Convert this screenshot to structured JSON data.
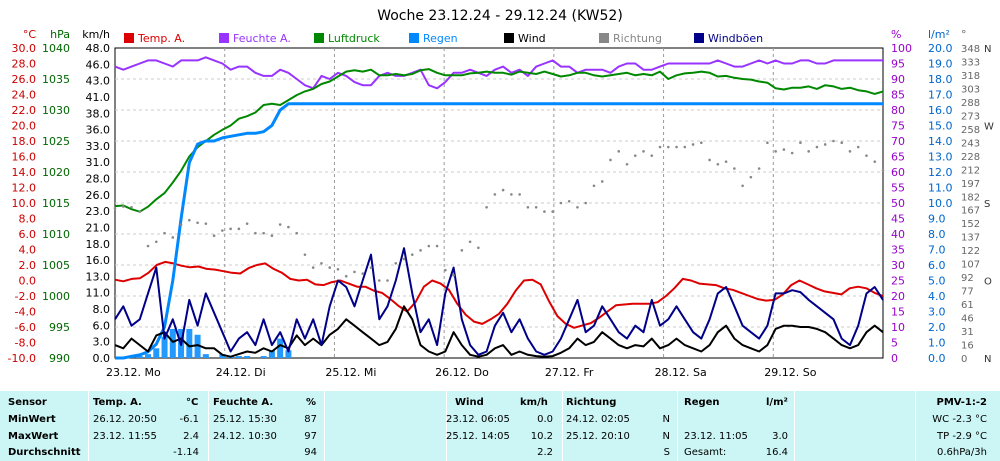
{
  "chart_data": {
    "type": "line",
    "title": "Woche 23.12.24 - 29.12.24 (KW52)",
    "days": [
      "23.12. Mo",
      "24.12. Di",
      "25.12. Mi",
      "26.12. Do",
      "27.12. Fr",
      "28.12. Sa",
      "29.12. So"
    ],
    "left_axes": [
      {
        "unit": "°C",
        "color": "#cc0000",
        "ticks": [
          "30.0",
          "28.0",
          "26.0",
          "24.0",
          "22.0",
          "20.0",
          "18.0",
          "16.0",
          "14.0",
          "12.0",
          "10.0",
          "8.0",
          "6.0",
          "4.0",
          "2.0",
          "0.0",
          "-2.0",
          "-4.0",
          "-6.0",
          "-8.0",
          "-10.0"
        ]
      },
      {
        "unit": "hPa",
        "color": "#006600",
        "ticks": [
          "1040",
          "1035",
          "1030",
          "1025",
          "1020",
          "1015",
          "1010",
          "1005",
          "1000",
          "995",
          "990"
        ]
      },
      {
        "unit": "km/h",
        "color": "#000000",
        "ticks": [
          "48.0",
          "46.0",
          "43.0",
          "41.0",
          "38.0",
          "36.0",
          "33.0",
          "31.0",
          "28.0",
          "26.0",
          "23.0",
          "21.0",
          "18.0",
          "16.0",
          "13.0",
          "11.0",
          "8.0",
          "6.0",
          "3.0",
          "0.0"
        ]
      }
    ],
    "right_axes": [
      {
        "unit": "%",
        "color": "#9900cc",
        "ticks": [
          "100",
          "95",
          "90",
          "85",
          "80",
          "75",
          "70",
          "65",
          "60",
          "55",
          "50",
          "45",
          "40",
          "35",
          "30",
          "25",
          "20",
          "15",
          "10",
          "5",
          "0"
        ]
      },
      {
        "unit": "l/m²",
        "color": "#0066cc",
        "ticks": [
          "20.0",
          "19.0",
          "18.0",
          "17.0",
          "16.0",
          "15.0",
          "14.0",
          "13.0",
          "12.0",
          "11.0",
          "10.0",
          "9.0",
          "8.0",
          "7.0",
          "6.0",
          "5.0",
          "4.0",
          "3.0",
          "2.0",
          "1.0",
          "0.0"
        ]
      },
      {
        "unit": "°",
        "color": "#666666",
        "ticks": [
          "348",
          "333",
          "318",
          "303",
          "288",
          "273",
          "258",
          "243",
          "228",
          "212",
          "197",
          "182",
          "167",
          "152",
          "137",
          "122",
          "107",
          "92",
          "77",
          "61",
          "46",
          "31",
          "16",
          "0"
        ]
      }
    ],
    "compass": [
      "N",
      "O",
      "S",
      "W",
      "N"
    ],
    "legend": [
      {
        "label": "Temp. A.",
        "color": "#dd0000"
      },
      {
        "label": "Feuchte A.",
        "color": "#9933ff"
      },
      {
        "label": "Luftdruck",
        "color": "#008800"
      },
      {
        "label": "Regen",
        "color": "#0088ff"
      },
      {
        "label": "Wind",
        "color": "#000000"
      },
      {
        "label": "Richtung",
        "color": "#888888"
      },
      {
        "label": "Windböen",
        "color": "#000088"
      }
    ],
    "series": [
      {
        "name": "Temp. A.",
        "unit": "°C",
        "ylim": [
          -10,
          30
        ],
        "color": "#dd0000",
        "values": [
          0.1,
          -0.1,
          0.2,
          0.3,
          1.0,
          2.0,
          2.4,
          2.2,
          1.9,
          1.7,
          1.8,
          1.5,
          1.4,
          1.2,
          1.0,
          0.9,
          1.6,
          2.0,
          2.2,
          1.5,
          1.0,
          0.2,
          0.0,
          0.1,
          -0.5,
          -0.6,
          -0.2,
          0.0,
          -0.4,
          -0.8,
          -0.8,
          -1.3,
          -1.6,
          -2.4,
          -3.3,
          -4.0,
          -2.8,
          -0.8,
          0.0,
          -0.4,
          -1.2,
          -3.0,
          -4.4,
          -5.3,
          -5.6,
          -5.0,
          -4.3,
          -3.0,
          -1.3,
          0.0,
          0.1,
          -0.5,
          -2.7,
          -4.6,
          -5.6,
          -6.1,
          -5.8,
          -5.5,
          -4.8,
          -4.0,
          -3.2,
          -3.1,
          -3.0,
          -3.0,
          -3.0,
          -2.8,
          -2.0,
          -1.0,
          0.2,
          0.0,
          -0.4,
          -0.5,
          -0.6,
          -1.0,
          -1.2,
          -1.6,
          -2.0,
          -2.4,
          -2.6,
          -2.5,
          -1.8,
          -0.6,
          0.0,
          -0.5,
          -1.0,
          -1.4,
          -1.6,
          -1.8,
          -1.0,
          -0.8,
          -1.0,
          -1.6,
          -2.0
        ]
      },
      {
        "name": "Feuchte A.",
        "unit": "%",
        "ylim": [
          0,
          100
        ],
        "color": "#9933ff",
        "values": [
          94,
          93,
          94,
          95,
          96,
          96,
          95,
          94,
          96,
          96,
          96,
          97,
          96,
          95,
          93,
          94,
          94,
          92,
          91,
          91,
          93,
          92,
          90,
          88,
          87,
          91,
          90,
          92,
          91,
          89,
          88,
          88,
          91,
          92,
          91,
          91,
          92,
          93,
          88,
          87,
          89,
          92,
          92,
          93,
          92,
          91,
          93,
          94,
          92,
          93,
          91,
          94,
          95,
          96,
          94,
          94,
          92,
          93,
          93,
          93,
          92,
          94,
          95,
          95,
          93,
          93,
          94,
          95,
          95,
          95,
          95,
          95,
          95,
          96,
          95,
          94,
          94,
          95,
          96,
          95,
          96,
          95,
          95,
          96,
          96,
          95,
          95,
          96,
          96,
          96,
          96,
          96,
          96,
          96
        ]
      },
      {
        "name": "Luftdruck",
        "unit": "hPa",
        "ylim": [
          990,
          1040
        ],
        "color": "#008800",
        "values": [
          1014.5,
          1014.6,
          1014.0,
          1013.6,
          1014.4,
          1015.6,
          1016.6,
          1018.3,
          1020.2,
          1022.5,
          1024.0,
          1025.0,
          1026.0,
          1026.8,
          1027.5,
          1028.6,
          1029.0,
          1029.6,
          1030.8,
          1031.0,
          1030.8,
          1031.6,
          1032.4,
          1033.0,
          1033.4,
          1034.2,
          1034.6,
          1035.4,
          1036.2,
          1036.4,
          1036.2,
          1036.5,
          1035.6,
          1035.6,
          1035.8,
          1035.6,
          1035.8,
          1036.4,
          1036.6,
          1036.0,
          1035.6,
          1035.6,
          1035.6,
          1035.9,
          1036.0,
          1036.2,
          1036.0,
          1036.0,
          1035.7,
          1036.2,
          1036.0,
          1035.8,
          1036.2,
          1035.8,
          1035.4,
          1035.6,
          1036.0,
          1036.0,
          1035.6,
          1035.4,
          1035.6,
          1035.8,
          1036.0,
          1035.6,
          1035.8,
          1035.6,
          1036.2,
          1035.0,
          1035.6,
          1035.9,
          1036.0,
          1036.2,
          1036.0,
          1035.4,
          1035.5,
          1035.2,
          1035.0,
          1034.9,
          1034.6,
          1034.4,
          1033.5,
          1033.3,
          1033.6,
          1033.6,
          1033.8,
          1033.4,
          1034.0,
          1033.8,
          1033.4,
          1033.6,
          1033.2,
          1033.0,
          1032.6,
          1033.0
        ]
      },
      {
        "name": "Regen",
        "unit": "l/m²",
        "ylim": [
          0,
          20
        ],
        "color": "#0088ff",
        "values": [
          0.0,
          0.0,
          0.1,
          0.2,
          0.4,
          0.9,
          2.0,
          5.0,
          9.0,
          12.6,
          13.8,
          14.0,
          14.0,
          14.2,
          14.3,
          14.4,
          14.5,
          14.5,
          14.6,
          15.0,
          16.0,
          16.4,
          16.4,
          16.4,
          16.4,
          16.4,
          16.4,
          16.4,
          16.4,
          16.4,
          16.4,
          16.4,
          16.4,
          16.4,
          16.4,
          16.4,
          16.4,
          16.4,
          16.4,
          16.4,
          16.4,
          16.4,
          16.4,
          16.4,
          16.4,
          16.4,
          16.4,
          16.4,
          16.4,
          16.4,
          16.4,
          16.4,
          16.4,
          16.4,
          16.4,
          16.4,
          16.4,
          16.4,
          16.4,
          16.4,
          16.4,
          16.4,
          16.4,
          16.4,
          16.4,
          16.4,
          16.4,
          16.4,
          16.4,
          16.4,
          16.4,
          16.4,
          16.4,
          16.4,
          16.4,
          16.4,
          16.4,
          16.4,
          16.4,
          16.4,
          16.4,
          16.4,
          16.4,
          16.4,
          16.4,
          16.4,
          16.4,
          16.4,
          16.4,
          16.4,
          16.4,
          16.4,
          16.4,
          16.4
        ]
      },
      {
        "name": "Wind",
        "unit": "km/h",
        "ylim": [
          0,
          48
        ],
        "color": "#000000",
        "values": [
          2.0,
          1.5,
          3.0,
          2.0,
          1.0,
          3.5,
          4.0,
          2.5,
          3.0,
          1.8,
          2.0,
          1.5,
          1.5,
          0.5,
          0.2,
          0.6,
          1.0,
          0.8,
          1.5,
          1.0,
          2.0,
          1.5,
          3.5,
          2.0,
          3.0,
          2.0,
          3.6,
          4.5,
          6.0,
          5.0,
          4.0,
          3.0,
          2.0,
          2.5,
          4.5,
          8.0,
          6.0,
          2.0,
          1.0,
          0.5,
          1.0,
          4.0,
          2.0,
          0.5,
          0.2,
          0.5,
          1.5,
          2.0,
          0.5,
          1.0,
          0.5,
          0.3,
          0.2,
          0.3,
          0.8,
          1.5,
          3.0,
          2.0,
          2.5,
          4.0,
          3.0,
          2.0,
          1.5,
          2.0,
          1.8,
          3.0,
          1.5,
          2.0,
          3.0,
          2.0,
          1.5,
          1.0,
          2.0,
          4.0,
          5.0,
          3.0,
          2.0,
          1.5,
          1.0,
          2.0,
          4.5,
          5.0,
          5.0,
          4.8,
          4.8,
          4.5,
          4.0,
          3.0,
          2.0,
          1.5,
          2.0,
          4.0,
          5.0,
          4.0
        ]
      },
      {
        "name": "Windböen",
        "unit": "km/h",
        "ylim": [
          0,
          48
        ],
        "color": "#000088",
        "values": [
          6.0,
          8.0,
          5.0,
          6.0,
          10.0,
          14.0,
          3.0,
          6.0,
          2.0,
          9.0,
          5.0,
          10.0,
          7.0,
          4.0,
          1.0,
          3.0,
          4.0,
          2.0,
          6.0,
          2.0,
          4.0,
          1.0,
          6.0,
          3.0,
          6.0,
          2.0,
          8.0,
          12.0,
          11.0,
          8.0,
          12.0,
          16.0,
          6.0,
          8.0,
          12.0,
          17.0,
          10.0,
          4.0,
          6.0,
          2.0,
          10.0,
          14.0,
          6.0,
          2.0,
          0.5,
          1.0,
          5.0,
          7.0,
          4.0,
          6.0,
          3.0,
          1.0,
          0.5,
          1.0,
          3.0,
          6.0,
          9.0,
          4.0,
          5.0,
          8.0,
          6.0,
          4.0,
          3.0,
          5.0,
          4.0,
          9.0,
          5.0,
          6.0,
          8.0,
          6.0,
          4.0,
          3.0,
          6.0,
          10.0,
          11.0,
          8.0,
          5.0,
          4.0,
          3.0,
          5.0,
          10.0,
          10.0,
          10.5,
          10.2,
          9.0,
          8.0,
          7.0,
          6.0,
          3.0,
          2.0,
          5.0,
          10.0,
          11.0,
          9.0
        ]
      },
      {
        "name": "Richtung",
        "unit": "°",
        "ylim": [
          0,
          360
        ],
        "color": "#888888",
        "values": [
          174,
          176,
          175,
          170,
          130,
          135,
          145,
          140,
          155,
          160,
          157,
          156,
          142,
          148,
          150,
          150,
          156,
          145,
          145,
          142,
          155,
          152,
          145,
          120,
          105,
          110,
          105,
          103,
          95,
          100,
          98,
          105,
          90,
          90,
          110,
          115,
          120,
          125,
          130,
          130,
          102,
          96,
          125,
          135,
          128,
          175,
          190,
          195,
          190,
          190,
          175,
          175,
          170,
          170,
          180,
          182,
          175,
          180,
          200,
          205,
          230,
          240,
          225,
          235,
          240,
          235,
          245,
          245,
          245,
          245,
          248,
          250,
          230,
          225,
          228,
          220,
          200,
          210,
          220,
          250,
          240,
          242,
          238,
          250,
          240,
          245,
          248,
          252,
          250,
          240,
          245,
          235,
          228,
          218
        ]
      }
    ],
    "stats": {
      "row_labels": [
        "Sensor",
        "MinWert",
        "MaxWert",
        "Durchschnitt"
      ],
      "temp": {
        "title": "Temp. A.",
        "unit": "°C",
        "min_time": "26.12.  20:50",
        "min": "-6.1",
        "max_time": "23.12.  11:55",
        "max": "2.4",
        "avg": "-1.14"
      },
      "hum": {
        "title": "Feuchte A.",
        "unit": "%",
        "min_time": "25.12.  15:30",
        "min": "87",
        "max_time": "24.12.  10:30",
        "max": "97",
        "avg": "94"
      },
      "wind": {
        "title": "Wind",
        "unit": "km/h",
        "min_time": "23.12.  06:05",
        "min": "0.0",
        "max_time": "25.12.  14:05",
        "max": "10.2",
        "avg": "2.2"
      },
      "dir": {
        "title": "Richtung",
        "min_time": "24.12.  02:05",
        "min": "N",
        "max_time": "25.12.  20:10",
        "max": "N",
        "avg": "S"
      },
      "rain": {
        "title": "Regen",
        "unit": "l/m²",
        "max_time": "23.12.  11:05",
        "max": "3.0",
        "total_label": "Gesamt:",
        "total": "16.4"
      },
      "pmv": {
        "title": "PMV-1:-2",
        "wc": "WC -2.3 °C",
        "tp": "TP -2.9 °C",
        "rate": "0.6hPa/3h"
      }
    }
  }
}
